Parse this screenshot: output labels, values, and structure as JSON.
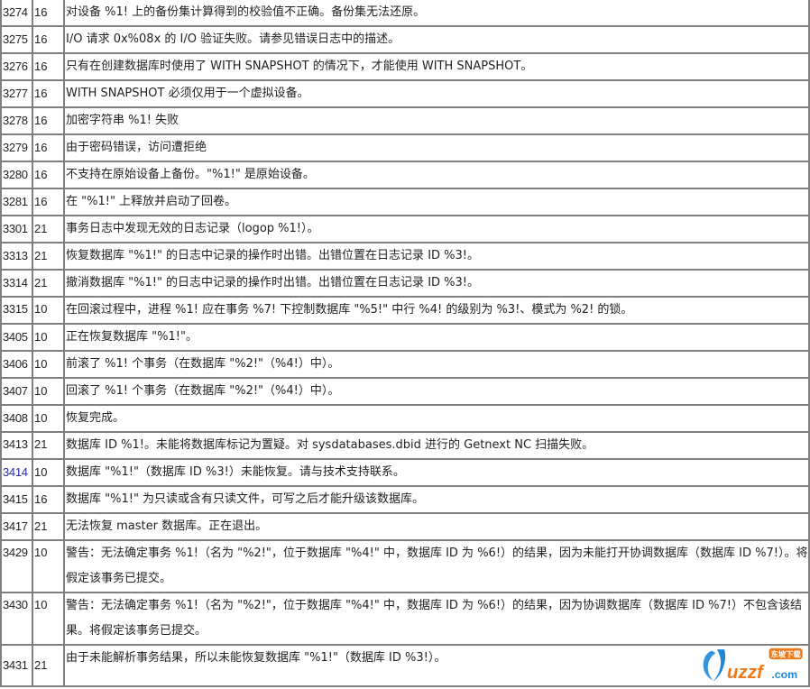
{
  "rows": [
    {
      "code": "3274",
      "severity": "16",
      "message": "对设备 %1! 上的备份集计算得到的校验值不正确。备份集无法还原。"
    },
    {
      "code": "3275",
      "severity": "16",
      "message": "I/O 请求 0x%08x 的 I/O 验证失败。请参见错误日志中的描述。"
    },
    {
      "code": "3276",
      "severity": "16",
      "message": "只有在创建数据库时使用了 WITH SNAPSHOT 的情况下，才能使用 WITH SNAPSHOT。"
    },
    {
      "code": "3277",
      "severity": "16",
      "message": "WITH SNAPSHOT 必须仅用于一个虚拟设备。"
    },
    {
      "code": "3278",
      "severity": "16",
      "message": "加密字符串 %1! 失败"
    },
    {
      "code": "3279",
      "severity": "16",
      "message": "由于密码错误，访问遭拒绝"
    },
    {
      "code": "3280",
      "severity": "16",
      "message": "不支持在原始设备上备份。\"%1!\" 是原始设备。"
    },
    {
      "code": "3281",
      "severity": "16",
      "message": "在 \"%1!\" 上释放并启动了回卷。"
    },
    {
      "code": "3301",
      "severity": "21",
      "message": "事务日志中发现无效的日志记录（logop %1!）。"
    },
    {
      "code": "3313",
      "severity": "21",
      "message": "恢复数据库 \"%1!\" 的日志中记录的操作时出错。出错位置在日志记录 ID %3!。"
    },
    {
      "code": "3314",
      "severity": "21",
      "message": "撤消数据库 \"%1!\" 的日志中记录的操作时出错。出错位置在日志记录 ID %3!。"
    },
    {
      "code": "3315",
      "severity": "10",
      "message": "在回滚过程中，进程 %1! 应在事务 %7! 下控制数据库 \"%5!\" 中行 %4! 的级别为 %3!、模式为 %2! 的锁。"
    },
    {
      "code": "3405",
      "severity": "10",
      "message": "正在恢复数据库 \"%1!\"。"
    },
    {
      "code": "3406",
      "severity": "10",
      "message": "前滚了 %1! 个事务（在数据库 \"%2!\"（%4!）中）。"
    },
    {
      "code": "3407",
      "severity": "10",
      "message": "回滚了 %1! 个事务（在数据库 \"%2!\"（%4!）中）。"
    },
    {
      "code": "3408",
      "severity": "10",
      "message": "恢复完成。"
    },
    {
      "code": "3413",
      "severity": "21",
      "message": "数据库 ID %1!。未能将数据库标记为置疑。对 sysdatabases.dbid 进行的 Getnext NC 扫描失败。"
    },
    {
      "code": "3414",
      "severity": "10",
      "message": "数据库 \"%1!\"（数据库 ID %3!）未能恢复。请与技术支持联系。",
      "link": true
    },
    {
      "code": "3415",
      "severity": "16",
      "message": "数据库 \"%1!\" 为只读或含有只读文件，可写之后才能升级该数据库。"
    },
    {
      "code": "3417",
      "severity": "21",
      "message": "无法恢复 master 数据库。正在退出。"
    },
    {
      "code": "3429",
      "severity": "10",
      "message": "警告：无法确定事务 %1!（名为 \"%2!\"，位于数据库 \"%4!\" 中，数据库 ID 为 %6!）的结果，因为未能打开协调数据库（数据库 ID %7!）。将假定该事务已提交。"
    },
    {
      "code": "3430",
      "severity": "10",
      "message": "警告：无法确定事务 %1!（名为 \"%2!\"，位于数据库 \"%4!\" 中，数据库 ID 为 %6!）的结果，因为协调数据库（数据库 ID %7!）不包含该结果。将假定该事务已提交。"
    },
    {
      "code": "3431",
      "severity": "21",
      "message": "由于未能解析事务结果，所以未能恢复数据库 \"%1!\"（数据库 ID %3!）。"
    }
  ],
  "watermark": {
    "text": "uzzf.com",
    "badge": "东坡下载",
    "colors": {
      "blue": "#1e88d8",
      "orange": "#f07a1a"
    }
  },
  "colors": {
    "border": "#808080",
    "link": "#2a2aa8",
    "text": "#222222"
  }
}
